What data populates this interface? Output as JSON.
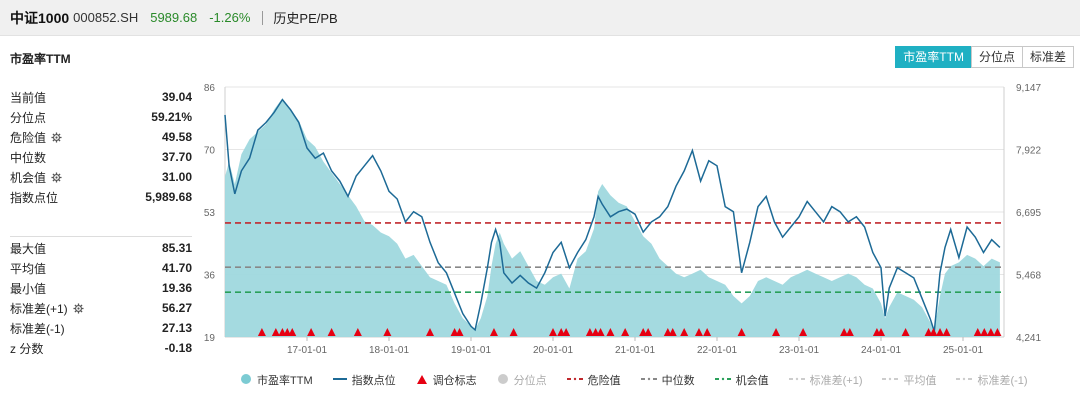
{
  "header": {
    "name": "中证1000",
    "code": "000852.SH",
    "price": "5989.68",
    "change": "-1.26%",
    "link": "历史PE/PB"
  },
  "subtitle": "市盈率TTM",
  "tabs": [
    {
      "label": "市盈率TTM",
      "active": true
    },
    {
      "label": "分位点",
      "active": false
    },
    {
      "label": "标准差",
      "active": false
    }
  ],
  "stats_top": [
    {
      "label": "当前值",
      "value": "39.04",
      "gear": false
    },
    {
      "label": "分位点",
      "value": "59.21%",
      "gear": false
    },
    {
      "label": "危险值",
      "value": "49.58",
      "gear": true
    },
    {
      "label": "中位数",
      "value": "37.70",
      "gear": false
    },
    {
      "label": "机会值",
      "value": "31.00",
      "gear": true
    },
    {
      "label": "指数点位",
      "value": "5,989.68",
      "gear": false
    }
  ],
  "stats_bottom": [
    {
      "label": "最大值",
      "value": "85.31",
      "gear": false
    },
    {
      "label": "平均值",
      "value": "41.70",
      "gear": false
    },
    {
      "label": "最小值",
      "value": "19.36",
      "gear": false
    },
    {
      "label": "标准差(+1)",
      "value": "56.27",
      "gear": true
    },
    {
      "label": "标准差(-1)",
      "value": "27.13",
      "gear": false
    },
    {
      "label": "z 分数",
      "value": "-0.18",
      "gear": false
    }
  ],
  "legend": [
    {
      "label": "市盈率TTM",
      "kind": "circle",
      "color": "#7ccbd3",
      "dim": false
    },
    {
      "label": "指数点位",
      "kind": "line",
      "color": "#1d6a96",
      "dim": false
    },
    {
      "label": "调仓标志",
      "kind": "triangle",
      "color": "#e60012",
      "dim": false
    },
    {
      "label": "分位点",
      "kind": "circle",
      "color": "#cccccc",
      "dim": true
    },
    {
      "label": "危险值",
      "kind": "dash",
      "color": "#c0282d",
      "dim": false
    },
    {
      "label": "中位数",
      "kind": "dash",
      "color": "#888888",
      "dim": false
    },
    {
      "label": "机会值",
      "kind": "dash",
      "color": "#2aa05a",
      "dim": false
    },
    {
      "label": "标准差(+1)",
      "kind": "dash",
      "color": "#cccccc",
      "dim": true
    },
    {
      "label": "平均值",
      "kind": "dash",
      "color": "#cccccc",
      "dim": true
    },
    {
      "label": "标准差(-1)",
      "kind": "dash",
      "color": "#cccccc",
      "dim": true
    }
  ],
  "chart_data": {
    "type": "area",
    "x_start": "2016-01-01",
    "x_end": "2025-06-30",
    "x_ticks": [
      "17-01-01",
      "18-01-01",
      "19-01-01",
      "20-01-01",
      "21-01-01",
      "22-01-01",
      "23-01-01",
      "24-01-01",
      "25-01-01"
    ],
    "y_left_ticks": [
      "19",
      "36",
      "53",
      "70",
      "86"
    ],
    "y_left_range": [
      19,
      86
    ],
    "y_right_ticks": [
      "4,241",
      "5,468",
      "6,695",
      "7,922",
      "9,147"
    ],
    "y_right_range": [
      4241,
      9147
    ],
    "reference_lines": {
      "danger": 49.58,
      "median": 37.7,
      "opportunity": 31.0
    },
    "pe_series": [
      {
        "x": 2016.0,
        "y": 62
      },
      {
        "x": 2016.05,
        "y": 66
      },
      {
        "x": 2016.12,
        "y": 60
      },
      {
        "x": 2016.2,
        "y": 68
      },
      {
        "x": 2016.3,
        "y": 72
      },
      {
        "x": 2016.4,
        "y": 74
      },
      {
        "x": 2016.5,
        "y": 76
      },
      {
        "x": 2016.6,
        "y": 80
      },
      {
        "x": 2016.7,
        "y": 83
      },
      {
        "x": 2016.8,
        "y": 80
      },
      {
        "x": 2016.9,
        "y": 77
      },
      {
        "x": 2017.0,
        "y": 72
      },
      {
        "x": 2017.1,
        "y": 70
      },
      {
        "x": 2017.2,
        "y": 66
      },
      {
        "x": 2017.3,
        "y": 63
      },
      {
        "x": 2017.4,
        "y": 60
      },
      {
        "x": 2017.5,
        "y": 57
      },
      {
        "x": 2017.6,
        "y": 54
      },
      {
        "x": 2017.7,
        "y": 50
      },
      {
        "x": 2017.8,
        "y": 49
      },
      {
        "x": 2017.9,
        "y": 47
      },
      {
        "x": 2018.0,
        "y": 46
      },
      {
        "x": 2018.1,
        "y": 44
      },
      {
        "x": 2018.2,
        "y": 40
      },
      {
        "x": 2018.3,
        "y": 41
      },
      {
        "x": 2018.4,
        "y": 38
      },
      {
        "x": 2018.5,
        "y": 35
      },
      {
        "x": 2018.6,
        "y": 34
      },
      {
        "x": 2018.7,
        "y": 33
      },
      {
        "x": 2018.8,
        "y": 28
      },
      {
        "x": 2018.9,
        "y": 24
      },
      {
        "x": 2019.0,
        "y": 22
      },
      {
        "x": 2019.05,
        "y": 21
      },
      {
        "x": 2019.12,
        "y": 24
      },
      {
        "x": 2019.2,
        "y": 30
      },
      {
        "x": 2019.25,
        "y": 38
      },
      {
        "x": 2019.3,
        "y": 44
      },
      {
        "x": 2019.35,
        "y": 47
      },
      {
        "x": 2019.4,
        "y": 44
      },
      {
        "x": 2019.5,
        "y": 40
      },
      {
        "x": 2019.6,
        "y": 42
      },
      {
        "x": 2019.7,
        "y": 38
      },
      {
        "x": 2019.8,
        "y": 34
      },
      {
        "x": 2019.9,
        "y": 33
      },
      {
        "x": 2020.0,
        "y": 35
      },
      {
        "x": 2020.1,
        "y": 36
      },
      {
        "x": 2020.2,
        "y": 32
      },
      {
        "x": 2020.3,
        "y": 40
      },
      {
        "x": 2020.4,
        "y": 42
      },
      {
        "x": 2020.5,
        "y": 48
      },
      {
        "x": 2020.55,
        "y": 58
      },
      {
        "x": 2020.6,
        "y": 60
      },
      {
        "x": 2020.7,
        "y": 57
      },
      {
        "x": 2020.8,
        "y": 55
      },
      {
        "x": 2020.9,
        "y": 54
      },
      {
        "x": 2021.0,
        "y": 50
      },
      {
        "x": 2021.1,
        "y": 46
      },
      {
        "x": 2021.2,
        "y": 44
      },
      {
        "x": 2021.3,
        "y": 40
      },
      {
        "x": 2021.4,
        "y": 38
      },
      {
        "x": 2021.5,
        "y": 36
      },
      {
        "x": 2021.6,
        "y": 35
      },
      {
        "x": 2021.7,
        "y": 36
      },
      {
        "x": 2021.8,
        "y": 37
      },
      {
        "x": 2021.9,
        "y": 35
      },
      {
        "x": 2022.0,
        "y": 34
      },
      {
        "x": 2022.1,
        "y": 33
      },
      {
        "x": 2022.2,
        "y": 30
      },
      {
        "x": 2022.3,
        "y": 28
      },
      {
        "x": 2022.4,
        "y": 30
      },
      {
        "x": 2022.5,
        "y": 34
      },
      {
        "x": 2022.6,
        "y": 35
      },
      {
        "x": 2022.7,
        "y": 34
      },
      {
        "x": 2022.8,
        "y": 33
      },
      {
        "x": 2022.9,
        "y": 35
      },
      {
        "x": 2023.0,
        "y": 36
      },
      {
        "x": 2023.1,
        "y": 37
      },
      {
        "x": 2023.2,
        "y": 36
      },
      {
        "x": 2023.3,
        "y": 35
      },
      {
        "x": 2023.4,
        "y": 34
      },
      {
        "x": 2023.5,
        "y": 35
      },
      {
        "x": 2023.6,
        "y": 36
      },
      {
        "x": 2023.7,
        "y": 35
      },
      {
        "x": 2023.8,
        "y": 33
      },
      {
        "x": 2023.9,
        "y": 32
      },
      {
        "x": 2024.0,
        "y": 28
      },
      {
        "x": 2024.05,
        "y": 24
      },
      {
        "x": 2024.1,
        "y": 27
      },
      {
        "x": 2024.2,
        "y": 31
      },
      {
        "x": 2024.3,
        "y": 30
      },
      {
        "x": 2024.4,
        "y": 29
      },
      {
        "x": 2024.5,
        "y": 27
      },
      {
        "x": 2024.6,
        "y": 23
      },
      {
        "x": 2024.65,
        "y": 21
      },
      {
        "x": 2024.72,
        "y": 30
      },
      {
        "x": 2024.78,
        "y": 36
      },
      {
        "x": 2024.85,
        "y": 38
      },
      {
        "x": 2024.95,
        "y": 39
      },
      {
        "x": 2025.05,
        "y": 41
      },
      {
        "x": 2025.15,
        "y": 40
      },
      {
        "x": 2025.25,
        "y": 38
      },
      {
        "x": 2025.35,
        "y": 40
      },
      {
        "x": 2025.45,
        "y": 39
      }
    ],
    "index_series": [
      {
        "x": 2016.0,
        "y": 8600
      },
      {
        "x": 2016.05,
        "y": 7600
      },
      {
        "x": 2016.12,
        "y": 7050
      },
      {
        "x": 2016.2,
        "y": 7500
      },
      {
        "x": 2016.3,
        "y": 7750
      },
      {
        "x": 2016.4,
        "y": 8300
      },
      {
        "x": 2016.5,
        "y": 8450
      },
      {
        "x": 2016.6,
        "y": 8650
      },
      {
        "x": 2016.7,
        "y": 8900
      },
      {
        "x": 2016.8,
        "y": 8700
      },
      {
        "x": 2016.9,
        "y": 8450
      },
      {
        "x": 2017.0,
        "y": 7950
      },
      {
        "x": 2017.1,
        "y": 7750
      },
      {
        "x": 2017.2,
        "y": 7850
      },
      {
        "x": 2017.3,
        "y": 7500
      },
      {
        "x": 2017.4,
        "y": 7300
      },
      {
        "x": 2017.5,
        "y": 7000
      },
      {
        "x": 2017.6,
        "y": 7400
      },
      {
        "x": 2017.7,
        "y": 7600
      },
      {
        "x": 2017.8,
        "y": 7800
      },
      {
        "x": 2017.9,
        "y": 7500
      },
      {
        "x": 2018.0,
        "y": 7100
      },
      {
        "x": 2018.1,
        "y": 6950
      },
      {
        "x": 2018.2,
        "y": 6500
      },
      {
        "x": 2018.3,
        "y": 6700
      },
      {
        "x": 2018.4,
        "y": 6600
      },
      {
        "x": 2018.5,
        "y": 6100
      },
      {
        "x": 2018.6,
        "y": 5700
      },
      {
        "x": 2018.7,
        "y": 5500
      },
      {
        "x": 2018.8,
        "y": 5100
      },
      {
        "x": 2018.9,
        "y": 4700
      },
      {
        "x": 2019.0,
        "y": 4450
      },
      {
        "x": 2019.05,
        "y": 4380
      },
      {
        "x": 2019.12,
        "y": 4900
      },
      {
        "x": 2019.2,
        "y": 5600
      },
      {
        "x": 2019.25,
        "y": 6100
      },
      {
        "x": 2019.3,
        "y": 6350
      },
      {
        "x": 2019.35,
        "y": 6100
      },
      {
        "x": 2019.4,
        "y": 5500
      },
      {
        "x": 2019.5,
        "y": 5300
      },
      {
        "x": 2019.6,
        "y": 5450
      },
      {
        "x": 2019.7,
        "y": 5300
      },
      {
        "x": 2019.8,
        "y": 5200
      },
      {
        "x": 2019.9,
        "y": 5500
      },
      {
        "x": 2020.0,
        "y": 5900
      },
      {
        "x": 2020.1,
        "y": 6100
      },
      {
        "x": 2020.2,
        "y": 5600
      },
      {
        "x": 2020.3,
        "y": 5900
      },
      {
        "x": 2020.4,
        "y": 6150
      },
      {
        "x": 2020.5,
        "y": 6600
      },
      {
        "x": 2020.55,
        "y": 7000
      },
      {
        "x": 2020.6,
        "y": 6850
      },
      {
        "x": 2020.7,
        "y": 6600
      },
      {
        "x": 2020.8,
        "y": 6700
      },
      {
        "x": 2020.9,
        "y": 6750
      },
      {
        "x": 2021.0,
        "y": 6650
      },
      {
        "x": 2021.1,
        "y": 6300
      },
      {
        "x": 2021.2,
        "y": 6500
      },
      {
        "x": 2021.3,
        "y": 6600
      },
      {
        "x": 2021.4,
        "y": 6800
      },
      {
        "x": 2021.5,
        "y": 7200
      },
      {
        "x": 2021.6,
        "y": 7500
      },
      {
        "x": 2021.7,
        "y": 7900
      },
      {
        "x": 2021.8,
        "y": 7300
      },
      {
        "x": 2021.9,
        "y": 7700
      },
      {
        "x": 2022.0,
        "y": 7600
      },
      {
        "x": 2022.1,
        "y": 6800
      },
      {
        "x": 2022.2,
        "y": 6700
      },
      {
        "x": 2022.3,
        "y": 5500
      },
      {
        "x": 2022.4,
        "y": 6100
      },
      {
        "x": 2022.5,
        "y": 6800
      },
      {
        "x": 2022.6,
        "y": 7000
      },
      {
        "x": 2022.7,
        "y": 6500
      },
      {
        "x": 2022.8,
        "y": 6200
      },
      {
        "x": 2022.9,
        "y": 6400
      },
      {
        "x": 2023.0,
        "y": 6600
      },
      {
        "x": 2023.1,
        "y": 6900
      },
      {
        "x": 2023.2,
        "y": 6700
      },
      {
        "x": 2023.3,
        "y": 6500
      },
      {
        "x": 2023.4,
        "y": 6800
      },
      {
        "x": 2023.5,
        "y": 6700
      },
      {
        "x": 2023.6,
        "y": 6500
      },
      {
        "x": 2023.7,
        "y": 6600
      },
      {
        "x": 2023.8,
        "y": 6400
      },
      {
        "x": 2023.9,
        "y": 5900
      },
      {
        "x": 2024.0,
        "y": 5600
      },
      {
        "x": 2024.05,
        "y": 4650
      },
      {
        "x": 2024.1,
        "y": 5200
      },
      {
        "x": 2024.2,
        "y": 5600
      },
      {
        "x": 2024.3,
        "y": 5500
      },
      {
        "x": 2024.4,
        "y": 5400
      },
      {
        "x": 2024.5,
        "y": 5000
      },
      {
        "x": 2024.6,
        "y": 4600
      },
      {
        "x": 2024.65,
        "y": 4350
      },
      {
        "x": 2024.72,
        "y": 5500
      },
      {
        "x": 2024.78,
        "y": 6000
      },
      {
        "x": 2024.85,
        "y": 6350
      },
      {
        "x": 2024.95,
        "y": 5800
      },
      {
        "x": 2025.05,
        "y": 6400
      },
      {
        "x": 2025.15,
        "y": 6200
      },
      {
        "x": 2025.25,
        "y": 5900
      },
      {
        "x": 2025.35,
        "y": 6150
      },
      {
        "x": 2025.45,
        "y": 6000
      }
    ],
    "rebalance_markers": [
      2016.45,
      2016.62,
      2016.7,
      2016.76,
      2016.82,
      2017.05,
      2017.3,
      2017.62,
      2017.98,
      2018.5,
      2018.8,
      2018.86,
      2019.28,
      2019.52,
      2020.0,
      2020.1,
      2020.16,
      2020.45,
      2020.52,
      2020.58,
      2020.7,
      2020.88,
      2021.1,
      2021.16,
      2021.4,
      2021.46,
      2021.6,
      2021.78,
      2021.88,
      2022.3,
      2022.72,
      2023.05,
      2023.55,
      2023.62,
      2023.95,
      2024.0,
      2024.3,
      2024.58,
      2024.64,
      2024.72,
      2024.8,
      2025.18,
      2025.26,
      2025.34,
      2025.42
    ]
  }
}
